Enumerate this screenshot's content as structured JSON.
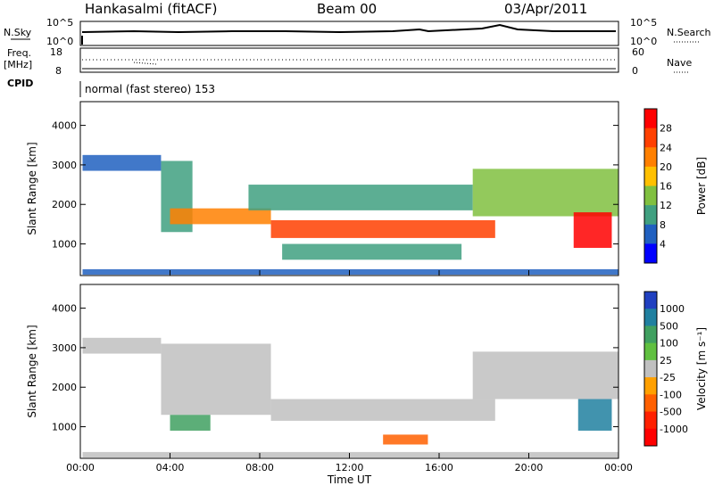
{
  "header": {
    "station": "Hankasalmi (fitACF)",
    "beam": "Beam 00",
    "date": "03/Apr/2011"
  },
  "summary_panel": {
    "nsky_label": "N.Sky",
    "nsky_ticks": [
      "10^5",
      "10^0"
    ],
    "nsearch_label": "N.Search",
    "freq_label": "Freq.",
    "freq_unit": "[MHz]",
    "freq_ticks": [
      "18",
      "8"
    ],
    "nave_label": "Nave",
    "nave_ticks": [
      "60",
      "0"
    ],
    "cpid_label": "CPID",
    "cpid_value": "normal (fast stereo) 153"
  },
  "chart_data": [
    {
      "type": "heatmap",
      "name": "power-panel",
      "ylabel": "Slant Range [km]",
      "ylim": [
        200,
        4600
      ],
      "yticks": [
        1000,
        2000,
        3000,
        4000
      ],
      "xlim": [
        0,
        24
      ],
      "xticks": [
        0,
        4,
        8,
        12,
        16,
        20,
        24
      ],
      "colorbar": {
        "label": "Power [dB]",
        "ticks": [
          "28",
          "24",
          "20",
          "16",
          "12",
          "8",
          "4"
        ],
        "colors": [
          "#ff0000",
          "#ff4000",
          "#ff8000",
          "#ffc000",
          "#80c040",
          "#40a080",
          "#2060c0",
          "#0000ff"
        ]
      },
      "bands": [
        {
          "x": [
            0.1,
            3.6
          ],
          "y": [
            2850,
            3250
          ],
          "level": 6
        },
        {
          "x": [
            3.6,
            5.0
          ],
          "y": [
            1300,
            3100
          ],
          "level": 5
        },
        {
          "x": [
            4.0,
            8.5
          ],
          "y": [
            1500,
            1900
          ],
          "level": 2
        },
        {
          "x": [
            8.5,
            18.5
          ],
          "y": [
            1150,
            1600
          ],
          "level": 1
        },
        {
          "x": [
            7.5,
            17.5
          ],
          "y": [
            1850,
            2500
          ],
          "level": 5
        },
        {
          "x": [
            17.5,
            24.0
          ],
          "y": [
            1700,
            2900
          ],
          "level": 4
        },
        {
          "x": [
            22.0,
            23.7
          ],
          "y": [
            900,
            1800
          ],
          "level": 0
        },
        {
          "x": [
            9.0,
            17.0
          ],
          "y": [
            600,
            1000
          ],
          "level": 5
        },
        {
          "x": [
            0.1,
            24.0
          ],
          "y": [
            220,
            360
          ],
          "level": 6
        }
      ]
    },
    {
      "type": "heatmap",
      "name": "velocity-panel",
      "ylabel": "Slant Range [km]",
      "ylim": [
        200,
        4600
      ],
      "yticks": [
        1000,
        2000,
        3000,
        4000
      ],
      "xlim": [
        0,
        24
      ],
      "xticks": [
        0,
        4,
        8,
        12,
        16,
        20,
        24
      ],
      "xtick_labels": [
        "00:00",
        "04:00",
        "08:00",
        "12:00",
        "16:00",
        "20:00",
        "00:00"
      ],
      "xlabel": "Time UT",
      "colorbar": {
        "label": "Velocity [m s⁻¹]",
        "ticks": [
          "1000",
          "500",
          "100",
          "25",
          "-25",
          "-100",
          "-500",
          "-1000"
        ],
        "colors": [
          "#2040c0",
          "#2080a0",
          "#40a060",
          "#60c040",
          "#c0c0c0",
          "#ffa000",
          "#ff6000",
          "#ff2000",
          "#ff0000"
        ]
      },
      "bands": [
        {
          "x": [
            0.1,
            3.6
          ],
          "y": [
            2850,
            3250
          ],
          "level": 4
        },
        {
          "x": [
            3.6,
            8.5
          ],
          "y": [
            1300,
            3100
          ],
          "level": 4
        },
        {
          "x": [
            4.0,
            5.8
          ],
          "y": [
            900,
            1300
          ],
          "level": 2
        },
        {
          "x": [
            8.5,
            18.5
          ],
          "y": [
            1150,
            1700
          ],
          "level": 4
        },
        {
          "x": [
            13.5,
            15.5
          ],
          "y": [
            550,
            800
          ],
          "level": 6
        },
        {
          "x": [
            17.5,
            24.0
          ],
          "y": [
            1700,
            2900
          ],
          "level": 4
        },
        {
          "x": [
            22.2,
            23.7
          ],
          "y": [
            900,
            1700
          ],
          "level": 1
        },
        {
          "x": [
            0.1,
            24.0
          ],
          "y": [
            220,
            360
          ],
          "level": 4
        }
      ]
    }
  ]
}
